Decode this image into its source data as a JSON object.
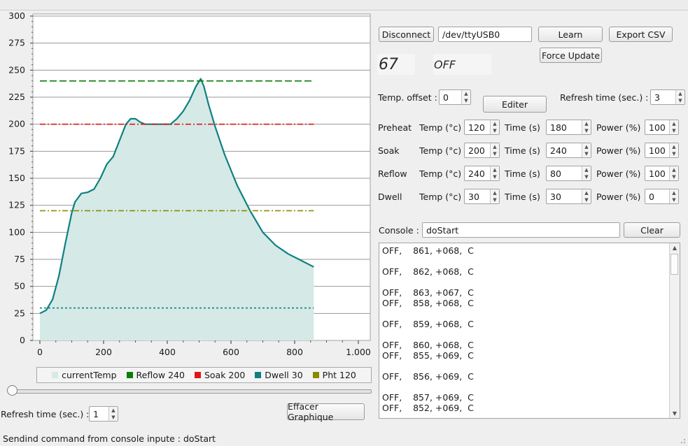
{
  "chart_data": {
    "type": "line",
    "x_ticks": [
      "0",
      "200",
      "400",
      "600",
      "800",
      "1.000"
    ],
    "y_ticks": [
      "0",
      "25",
      "50",
      "75",
      "100",
      "125",
      "150",
      "175",
      "200",
      "225",
      "250",
      "275",
      "300"
    ],
    "xlim": [
      0,
      1000
    ],
    "ylim": [
      0,
      300
    ],
    "grid": "horizontal",
    "legend_position": "bottom",
    "series": [
      {
        "name": "currentTemp",
        "style": "area",
        "color": "#0e8080",
        "fill": "#d5e9e7",
        "x": [
          0,
          20,
          40,
          60,
          80,
          100,
          110,
          130,
          150,
          170,
          190,
          210,
          230,
          250,
          270,
          285,
          300,
          315,
          330,
          350,
          380,
          410,
          430,
          450,
          470,
          490,
          505,
          515,
          530,
          550,
          580,
          620,
          660,
          700,
          740,
          780,
          820,
          860
        ],
        "y": [
          25,
          28,
          38,
          60,
          90,
          118,
          128,
          136,
          137,
          140,
          150,
          163,
          170,
          185,
          200,
          205,
          205,
          202,
          200,
          200,
          200,
          200,
          205,
          212,
          222,
          235,
          242,
          235,
          218,
          198,
          172,
          143,
          120,
          100,
          88,
          80,
          74,
          68
        ]
      },
      {
        "name": "Reflow 240",
        "style": "dashed",
        "color": "#0a7d0a",
        "x": [
          0,
          860
        ],
        "y": [
          240,
          240
        ]
      },
      {
        "name": "Soak 200",
        "style": "dashdot",
        "color": "#e11414",
        "x": [
          0,
          860
        ],
        "y": [
          200,
          200
        ]
      },
      {
        "name": "Dwell 30",
        "style": "dotted",
        "color": "#0e8080",
        "x": [
          0,
          860
        ],
        "y": [
          30,
          30
        ]
      },
      {
        "name": "Pht 120",
        "style": "dashdot",
        "color": "#8a8a00",
        "x": [
          0,
          860
        ],
        "y": [
          120,
          120
        ]
      }
    ]
  },
  "legend": [
    {
      "label": "currentTemp",
      "color": "#d5e9e7"
    },
    {
      "label": "Reflow 240",
      "color": "#0a7d0a"
    },
    {
      "label": "Soak 200",
      "color": "#e11414"
    },
    {
      "label": "Dwell 30",
      "color": "#0e8080"
    },
    {
      "label": "Pht 120",
      "color": "#8a8a00"
    }
  ],
  "left_bottom": {
    "refresh_label": "Refresh time (sec.) :",
    "refresh_value": "1",
    "clear_graph_label": "Effacer Graphique"
  },
  "connection": {
    "disconnect_label": "Disconnect",
    "port_value": "/dev/ttyUSB0",
    "learn_label": "Learn",
    "export_label": "Export CSV",
    "force_update_label": "Force Update",
    "temp_display": "67",
    "state_display": "OFF"
  },
  "settings": {
    "temp_offset_label": "Temp. offset :",
    "temp_offset_value": "0",
    "editer_label": "Editer",
    "refresh_label": "Refresh time (sec.) :",
    "refresh_value": "3"
  },
  "profile_headers": {
    "temp": "Temp (°c)",
    "time": "Time (s)",
    "power": "Power (%)"
  },
  "profile": [
    {
      "stage": "Preheat",
      "temp": "120",
      "time": "180",
      "power": "100"
    },
    {
      "stage": "Soak",
      "temp": "200",
      "time": "240",
      "power": "100"
    },
    {
      "stage": "Reflow",
      "temp": "240",
      "time": "80",
      "power": "100"
    },
    {
      "stage": "Dwell",
      "temp": "30",
      "time": "30",
      "power": "0"
    }
  ],
  "console": {
    "label": "Console :",
    "input_value": "doStart",
    "clear_label": "Clear",
    "lines": [
      "OFF,    861, +068,  C",
      "",
      "OFF,    862, +068,  C",
      "",
      "OFF,    863, +067,  C",
      "OFF,    858, +068,  C",
      "",
      "OFF,    859, +068,  C",
      "",
      "OFF,    860, +068,  C",
      "OFF,    855, +069,  C",
      "",
      "OFF,    856, +069,  C",
      "",
      "OFF,    857, +069,  C",
      "OFF,    852, +069,  C"
    ]
  },
  "status_bar": "Sendind command from console inpute : doStart"
}
